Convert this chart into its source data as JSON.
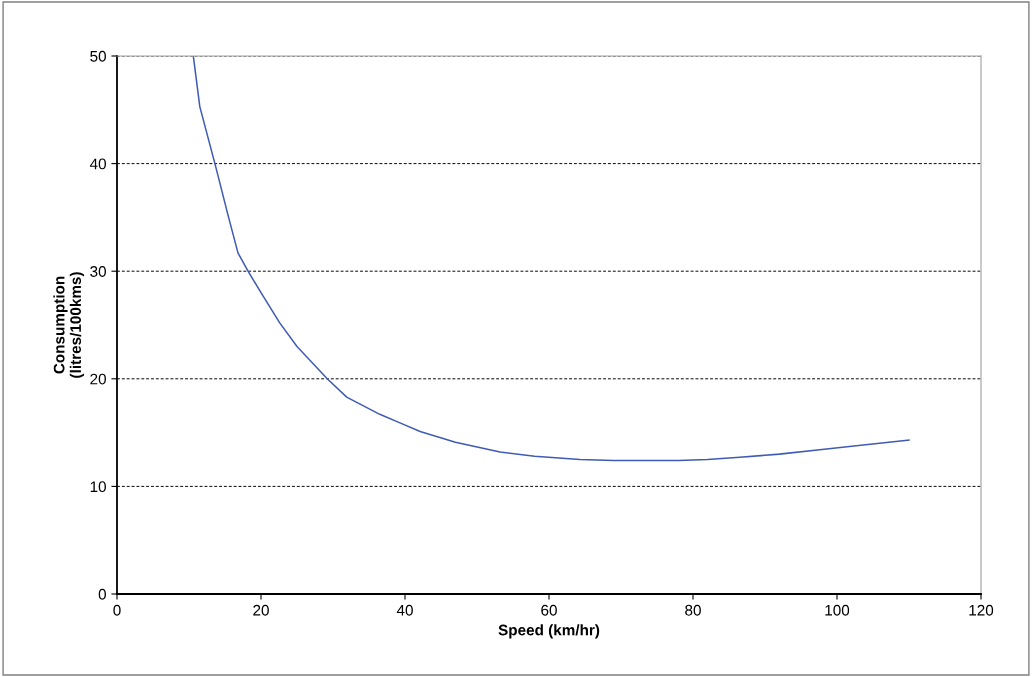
{
  "chart_data": {
    "type": "line",
    "xlabel": "Speed (km/hr)",
    "ylabel": "Consumption\n(litres/100kms)",
    "series": [
      {
        "color": "#3f5bb5",
        "x": [
          10.6,
          11.5,
          13.6,
          15.5,
          16.8,
          18.2,
          20,
          22.6,
          25,
          29.2,
          31.9,
          36.5,
          39.3,
          42.1,
          47,
          53.2,
          58,
          64.3,
          69,
          73.2,
          78,
          82,
          86.5,
          92,
          97.6,
          103,
          110
        ],
        "values": [
          50,
          45.3,
          40,
          35,
          31.7,
          30,
          28,
          25.2,
          23,
          20,
          18.3,
          16.7,
          15.9,
          15.1,
          14.1,
          13.2,
          12.8,
          12.5,
          12.4,
          12.4,
          12.4,
          12.5,
          12.7,
          13,
          13.4,
          13.8,
          14.3
        ]
      }
    ],
    "xlim": [
      0,
      120
    ],
    "xticks": [
      0,
      20,
      40,
      60,
      80,
      100,
      120
    ],
    "ylim": [
      0,
      50
    ],
    "yticks": [
      0,
      10,
      20,
      30,
      40,
      50
    ],
    "grid": "y",
    "marker": "none",
    "line_style": "solid",
    "legend": false
  }
}
